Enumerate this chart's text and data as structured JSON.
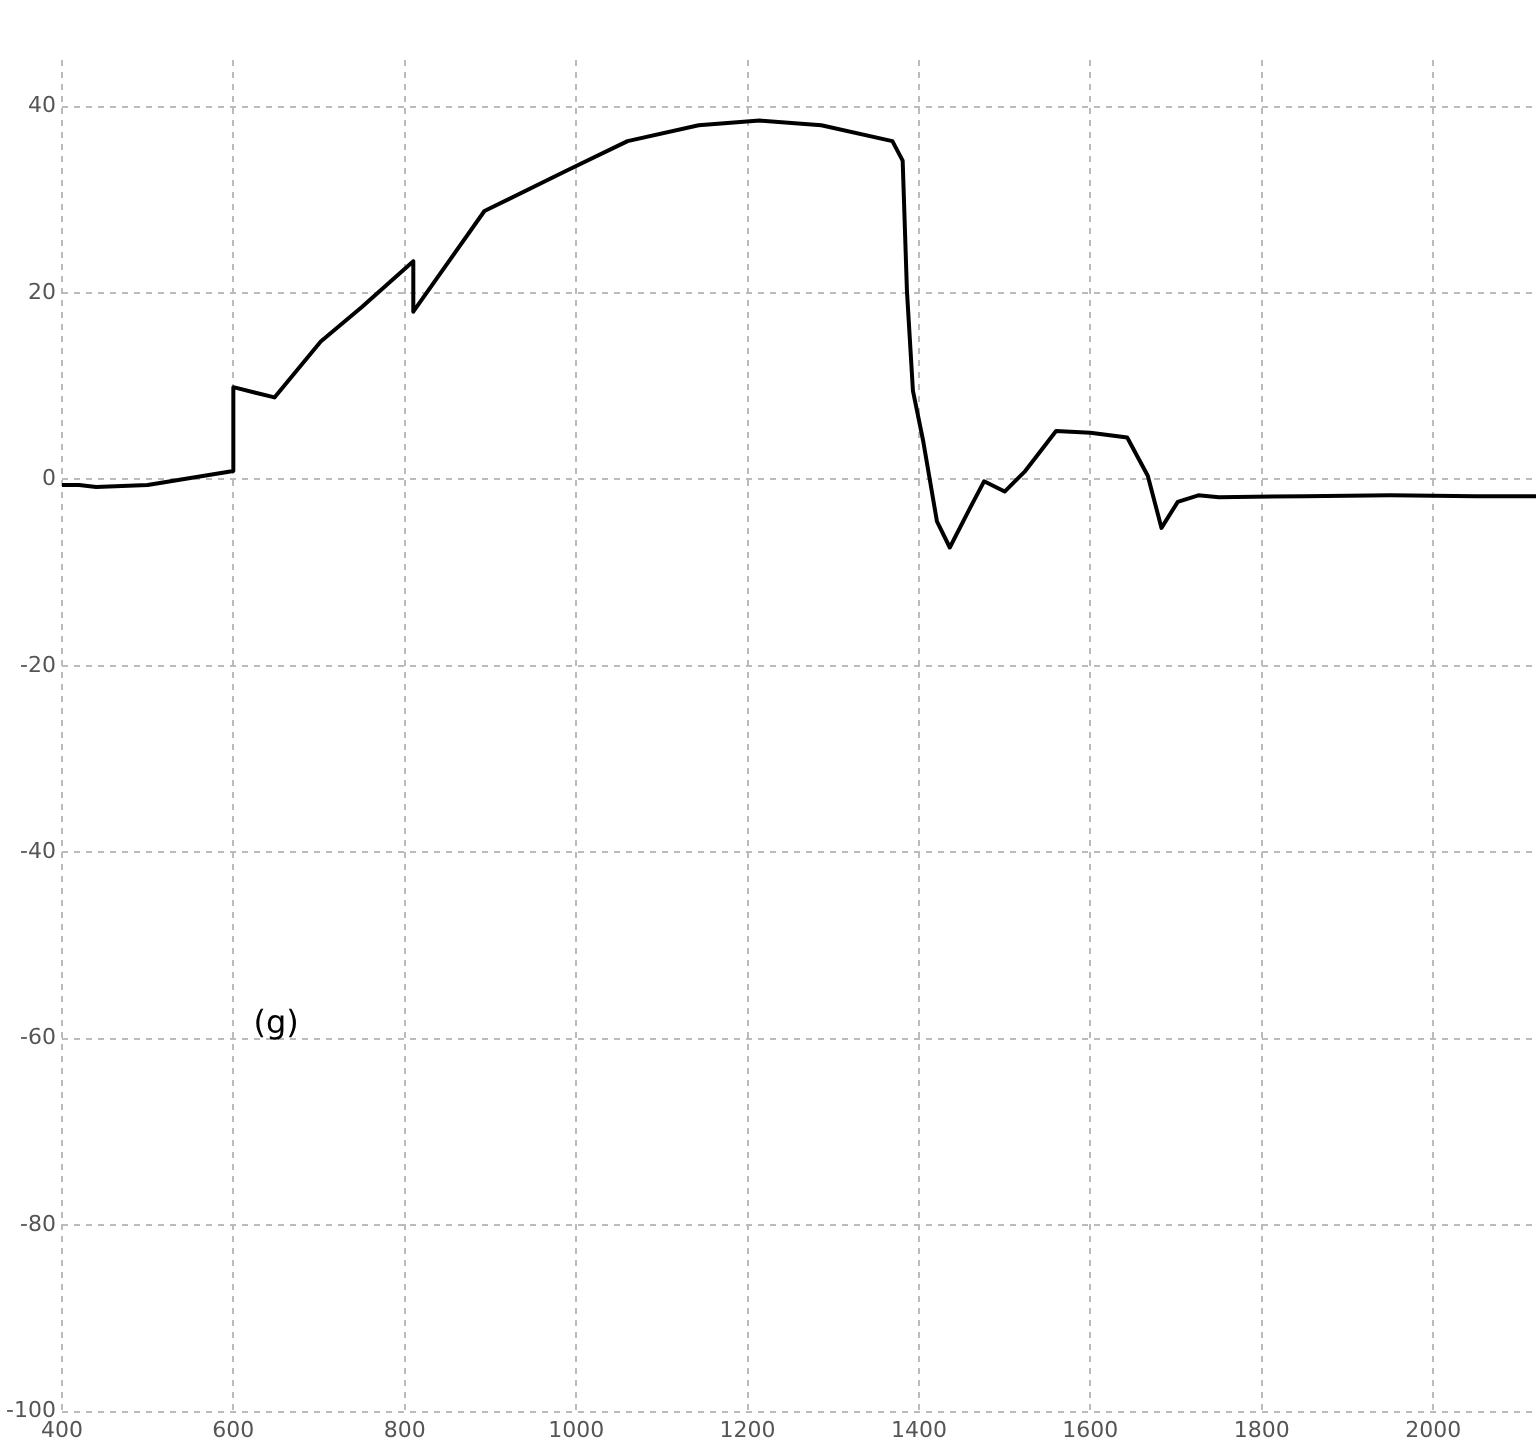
{
  "chart_data": {
    "type": "line",
    "annotations": [
      "(g)"
    ],
    "x": [
      400,
      420,
      440,
      500,
      600,
      600,
      648,
      702,
      750,
      810,
      810,
      893,
      988,
      1060,
      1143,
      1214,
      1286,
      1369,
      1381,
      1386,
      1393,
      1405,
      1421,
      1436,
      1460,
      1476,
      1500,
      1524,
      1560,
      1600,
      1643,
      1667,
      1683,
      1702,
      1726,
      1750,
      1850,
      1950,
      2050,
      2120
    ],
    "series": [
      {
        "color": "#000000",
        "values": [
          -0.6,
          -0.6,
          -0.8,
          -0.6,
          0.9,
          9.9,
          8.8,
          14.8,
          18.5,
          23.4,
          18,
          28.8,
          33.1,
          36.3,
          38,
          38.5,
          38,
          36.3,
          34.2,
          20.2,
          9.5,
          4.1,
          -4.5,
          -7.3,
          -3,
          -0.2,
          -1.3,
          0.9,
          5.2,
          5,
          4.5,
          0.4,
          -5.2,
          -2.4,
          -1.7,
          -1.9,
          -1.8,
          -1.7,
          -1.8,
          -1.8
        ]
      }
    ],
    "xlim": [
      400,
      2120
    ],
    "xticks": [
      400,
      600,
      800,
      1000,
      1200,
      1400,
      1600,
      1800,
      2000
    ],
    "ylim": [
      -100,
      45
    ],
    "yticks": [
      -100,
      -80,
      -60,
      -40,
      -20,
      0,
      20,
      40
    ],
    "grid": true,
    "legend": false,
    "marker": "none",
    "line_style": "solid"
  }
}
